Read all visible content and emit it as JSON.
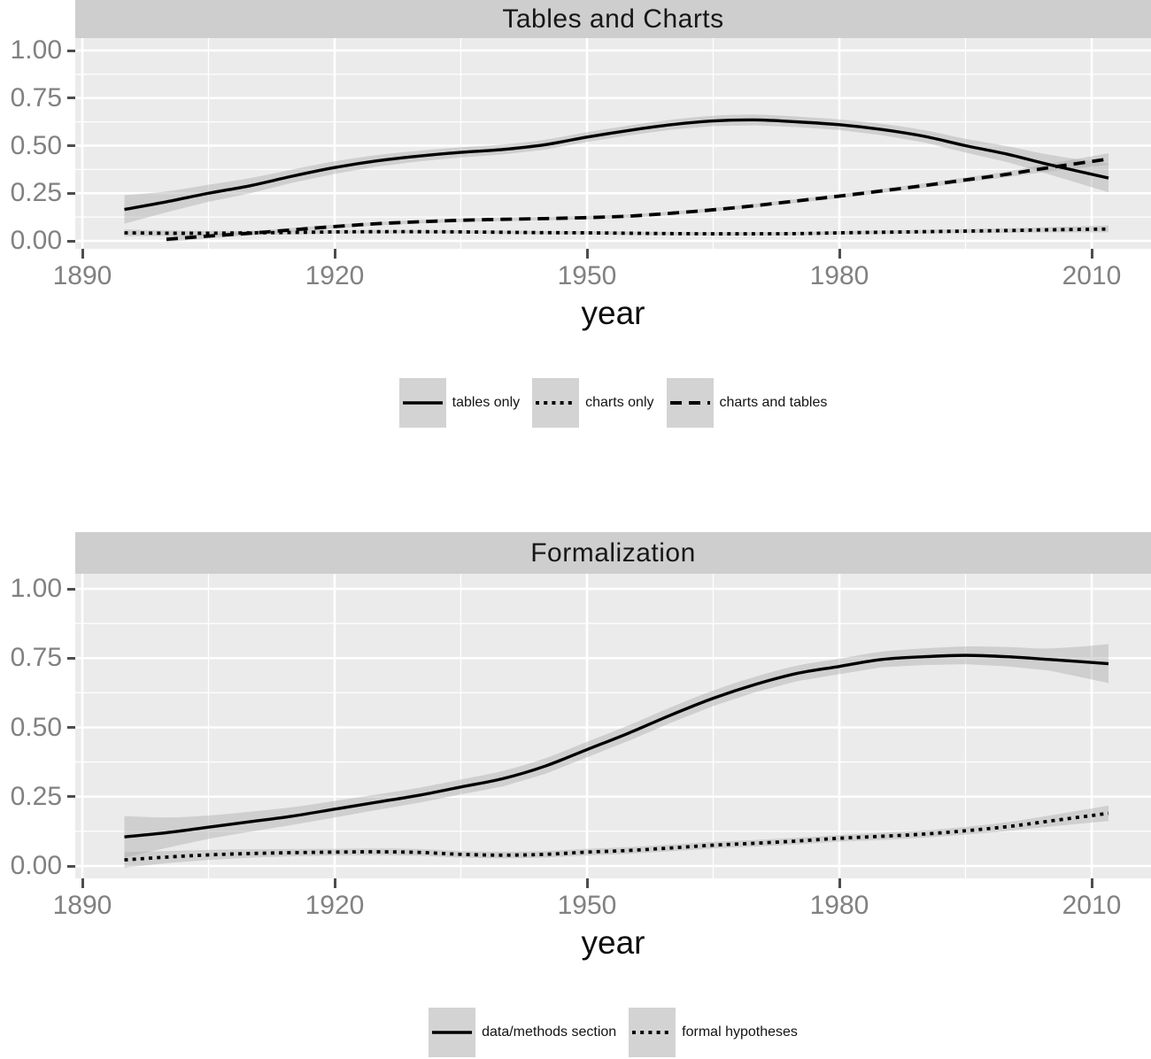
{
  "figure": {
    "background": "#ffffff",
    "style": {
      "panel_background": "#ebebeb",
      "strip_background": "#cecece",
      "grid_color": "#ffffff",
      "line_color": "#000000",
      "ribbon_color": "#aaaaaa",
      "axis_text_color": "#818181",
      "tick_mark_color": "#4d4d4d",
      "legend_key_background": "#d3d3d3"
    }
  },
  "chart_data": [
    {
      "type": "line",
      "title": "Tables and Charts",
      "xlabel": "year",
      "ylabel": "",
      "grid": true,
      "legend_position": "bottom",
      "xlim": [
        1889,
        2017
      ],
      "ylim": [
        -0.04,
        1.06
      ],
      "x_major_ticks": [
        1890,
        1920,
        1950,
        1980,
        2010
      ],
      "x_tick_labels": [
        "1890",
        "1920",
        "1950",
        "1980",
        "2010"
      ],
      "x_minor_ticks": [
        1905,
        1935,
        1965,
        1995
      ],
      "y_major_ticks": [
        1.0,
        0.75,
        0.5,
        0.25,
        0.0
      ],
      "y_tick_labels": [
        "1.00",
        "0.75",
        "0.50",
        "0.25",
        "0.00"
      ],
      "y_minor_ticks": [
        0.875,
        0.625,
        0.375,
        0.125
      ],
      "x": [
        1895,
        1900,
        1905,
        1910,
        1915,
        1920,
        1925,
        1930,
        1935,
        1940,
        1945,
        1950,
        1955,
        1960,
        1965,
        1970,
        1975,
        1980,
        1985,
        1990,
        1995,
        2000,
        2005,
        2012
      ],
      "series": [
        {
          "name": "tables only",
          "line_style": "solid",
          "values": [
            0.165,
            0.205,
            0.25,
            0.29,
            0.34,
            0.385,
            0.42,
            0.445,
            0.465,
            0.48,
            0.505,
            0.545,
            0.58,
            0.61,
            0.63,
            0.635,
            0.625,
            0.61,
            0.585,
            0.55,
            0.5,
            0.455,
            0.4,
            0.33
          ],
          "band_halfwidth": [
            0.075,
            0.055,
            0.045,
            0.04,
            0.035,
            0.033,
            0.03,
            0.028,
            0.027,
            0.026,
            0.026,
            0.026,
            0.026,
            0.026,
            0.027,
            0.028,
            0.028,
            0.028,
            0.03,
            0.032,
            0.036,
            0.042,
            0.052,
            0.075
          ]
        },
        {
          "name": "charts only",
          "line_style": "dotted",
          "values": [
            0.042,
            0.04,
            0.04,
            0.042,
            0.044,
            0.047,
            0.048,
            0.048,
            0.047,
            0.045,
            0.043,
            0.042,
            0.04,
            0.038,
            0.037,
            0.037,
            0.038,
            0.042,
            0.045,
            0.048,
            0.051,
            0.054,
            0.058,
            0.062
          ],
          "band_halfwidth": [
            0.018,
            0.014,
            0.012,
            0.011,
            0.01,
            0.01,
            0.009,
            0.009,
            0.009,
            0.009,
            0.009,
            0.009,
            0.009,
            0.009,
            0.009,
            0.009,
            0.009,
            0.009,
            0.01,
            0.01,
            0.011,
            0.012,
            0.014,
            0.018
          ]
        },
        {
          "name": "charts and tables",
          "line_style": "dashed",
          "values": [
            null,
            0.008,
            0.025,
            0.04,
            0.058,
            0.075,
            0.09,
            0.1,
            0.108,
            0.113,
            0.117,
            0.122,
            0.13,
            0.145,
            0.163,
            0.185,
            0.21,
            0.235,
            0.262,
            0.29,
            0.32,
            0.35,
            0.385,
            0.43
          ],
          "band_halfwidth": [
            null,
            0.015,
            0.012,
            0.011,
            0.01,
            0.01,
            0.009,
            0.009,
            0.009,
            0.009,
            0.009,
            0.009,
            0.009,
            0.009,
            0.01,
            0.01,
            0.01,
            0.011,
            0.011,
            0.012,
            0.013,
            0.015,
            0.02,
            0.03
          ]
        }
      ]
    },
    {
      "type": "line",
      "title": "Formalization",
      "xlabel": "year",
      "ylabel": "",
      "grid": true,
      "legend_position": "bottom",
      "xlim": [
        1889,
        2017
      ],
      "ylim": [
        -0.045,
        1.05
      ],
      "x_major_ticks": [
        1890,
        1920,
        1950,
        1980,
        2010
      ],
      "x_tick_labels": [
        "1890",
        "1920",
        "1950",
        "1980",
        "2010"
      ],
      "x_minor_ticks": [
        1905,
        1935,
        1965,
        1995
      ],
      "y_major_ticks": [
        1.0,
        0.75,
        0.5,
        0.25,
        0.0
      ],
      "y_tick_labels": [
        "1.00",
        "0.75",
        "0.50",
        "0.25",
        "0.00"
      ],
      "y_minor_ticks": [
        0.875,
        0.625,
        0.375,
        0.125
      ],
      "x": [
        1895,
        1900,
        1905,
        1910,
        1915,
        1920,
        1925,
        1930,
        1935,
        1940,
        1945,
        1950,
        1955,
        1960,
        1965,
        1970,
        1975,
        1980,
        1985,
        1990,
        1995,
        2000,
        2005,
        2012
      ],
      "series": [
        {
          "name": "data/methods section",
          "line_style": "solid",
          "values": [
            0.105,
            0.12,
            0.14,
            0.16,
            0.18,
            0.205,
            0.23,
            0.255,
            0.285,
            0.315,
            0.36,
            0.42,
            0.48,
            0.545,
            0.605,
            0.655,
            0.695,
            0.72,
            0.745,
            0.755,
            0.76,
            0.755,
            0.745,
            0.73
          ],
          "band_halfwidth": [
            0.075,
            0.055,
            0.042,
            0.036,
            0.032,
            0.03,
            0.028,
            0.027,
            0.027,
            0.028,
            0.028,
            0.028,
            0.028,
            0.028,
            0.028,
            0.028,
            0.028,
            0.028,
            0.028,
            0.03,
            0.032,
            0.035,
            0.04,
            0.07
          ]
        },
        {
          "name": "formal hypotheses",
          "line_style": "dotted",
          "values": [
            0.022,
            0.032,
            0.04,
            0.045,
            0.048,
            0.05,
            0.051,
            0.049,
            0.042,
            0.039,
            0.042,
            0.05,
            0.056,
            0.065,
            0.075,
            0.082,
            0.09,
            0.1,
            0.107,
            0.115,
            0.127,
            0.142,
            0.162,
            0.19
          ],
          "band_halfwidth": [
            0.028,
            0.022,
            0.018,
            0.015,
            0.013,
            0.012,
            0.012,
            0.012,
            0.012,
            0.012,
            0.012,
            0.012,
            0.012,
            0.012,
            0.012,
            0.012,
            0.012,
            0.012,
            0.013,
            0.013,
            0.014,
            0.016,
            0.02,
            0.028
          ]
        }
      ]
    }
  ]
}
